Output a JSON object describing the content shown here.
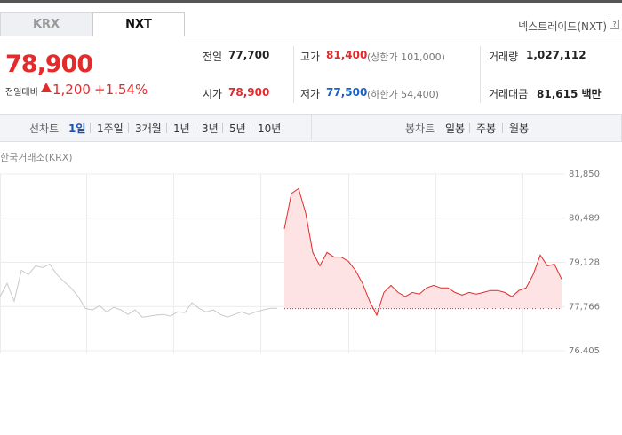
{
  "tabs": [
    "KRX",
    "NXT"
  ],
  "provider": "넥스트레이드(NXT)",
  "quote": {
    "price": "78,900",
    "change_label": "전일대비",
    "change": "1,200",
    "change_pct": "+1.54%"
  },
  "stats": [
    {
      "label": "전일",
      "value": "77,700"
    },
    {
      "label": "고가",
      "value": "81,400",
      "note": "(상한가 101,000)"
    },
    {
      "label": "거래량",
      "value": "1,027,112"
    },
    {
      "label": "시가",
      "value": "78,900"
    },
    {
      "label": "저가",
      "value": "77,500",
      "note": "(하한가 54,400)"
    },
    {
      "label": "거래대금",
      "value": "81,615 백만"
    }
  ],
  "toolbar": {
    "line_chart": "선차트",
    "periods": [
      "1일",
      "1주일",
      "3개월",
      "1년",
      "3년",
      "5년",
      "10년"
    ],
    "candle_chart": "봉차트",
    "candle_periods": [
      "일봉",
      "주봉",
      "월봉"
    ]
  },
  "chart_data": {
    "type": "line",
    "source": "한국거래소(KRX)",
    "ylim": [
      76405,
      81850
    ],
    "yticks": [
      {
        "value": 81850,
        "label": "81,850"
      },
      {
        "value": 80489,
        "label": "80,489"
      },
      {
        "value": 79128,
        "label": "79,128"
      },
      {
        "value": 77766,
        "label": "77,766"
      },
      {
        "value": 76405,
        "label": "76,405"
      }
    ],
    "grid": true,
    "baseline": 77700,
    "series": [
      {
        "color": "#c9c9c9",
        "values": [
          78070,
          78480,
          77930,
          78880,
          78750,
          79020,
          78970,
          79070,
          78750,
          78530,
          78340,
          78070,
          77710,
          77660,
          77790,
          77600,
          77740,
          77660,
          77520,
          77660,
          77440,
          77470,
          77500,
          77520,
          77470,
          77600,
          77580,
          77880,
          77710,
          77600,
          77660,
          77520,
          77440,
          77520,
          77600,
          77520,
          77600,
          77660,
          77710,
          77710,
          null,
          null,
          null,
          null,
          null,
          null,
          null,
          null,
          null,
          null,
          null,
          null,
          null,
          null,
          null,
          null,
          null,
          null,
          null,
          null,
          null,
          null,
          null,
          null,
          null,
          null,
          null,
          null,
          null,
          null,
          null,
          null,
          null,
          null,
          null,
          null,
          null,
          null,
          null,
          null
        ]
      },
      {
        "color": "#e22b2b",
        "values": [
          null,
          null,
          null,
          null,
          null,
          null,
          null,
          null,
          null,
          null,
          null,
          null,
          null,
          null,
          null,
          null,
          null,
          null,
          null,
          null,
          null,
          null,
          null,
          null,
          null,
          null,
          null,
          null,
          null,
          null,
          null,
          null,
          null,
          null,
          null,
          null,
          null,
          null,
          null,
          null,
          80160,
          81250,
          81400,
          80650,
          79430,
          79020,
          79430,
          79290,
          79290,
          79160,
          78880,
          78480,
          77930,
          77500,
          78200,
          78420,
          78200,
          78070,
          78200,
          78150,
          78340,
          78420,
          78340,
          78340,
          78200,
          78120,
          78200,
          78150,
          78200,
          78260,
          78260,
          78200,
          78070,
          78260,
          78340,
          78750,
          79350,
          79020,
          79070,
          78610
        ]
      }
    ]
  }
}
